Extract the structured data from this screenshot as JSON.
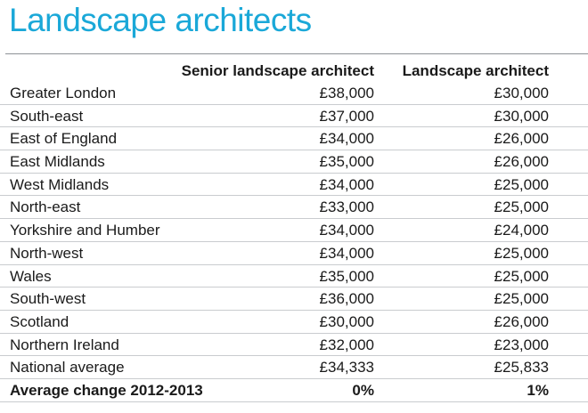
{
  "chart_data": {
    "type": "table",
    "title": "Landscape architects",
    "columns": [
      "",
      "Senior landscape architect",
      "Landscape architect"
    ],
    "rows": [
      {
        "region": "Greater London",
        "senior": "£38,000",
        "landscape": "£30,000"
      },
      {
        "region": "South-east",
        "senior": "£37,000",
        "landscape": "£30,000"
      },
      {
        "region": "East of England",
        "senior": "£34,000",
        "landscape": "£26,000"
      },
      {
        "region": "East Midlands",
        "senior": "£35,000",
        "landscape": "£26,000"
      },
      {
        "region": "West Midlands",
        "senior": "£34,000",
        "landscape": "£25,000"
      },
      {
        "region": "North-east",
        "senior": "£33,000",
        "landscape": "£25,000"
      },
      {
        "region": "Yorkshire and Humber",
        "senior": "£34,000",
        "landscape": "£24,000"
      },
      {
        "region": "North-west",
        "senior": "£34,000",
        "landscape": "£25,000"
      },
      {
        "region": "Wales",
        "senior": "£35,000",
        "landscape": "£25,000"
      },
      {
        "region": "South-west",
        "senior": "£36,000",
        "landscape": "£25,000"
      },
      {
        "region": "Scotland",
        "senior": "£30,000",
        "landscape": "£26,000"
      },
      {
        "region": "Northern Ireland",
        "senior": "£32,000",
        "landscape": "£23,000"
      },
      {
        "region": "National average",
        "senior": "£34,333",
        "landscape": "£25,833"
      }
    ],
    "summary": {
      "region": "Average change 2012-2013",
      "senior": "0%",
      "landscape": "1%"
    },
    "colors": {
      "title": "#1aa8d8",
      "text": "#1a1a1a",
      "rule": "#c9cccf"
    }
  }
}
